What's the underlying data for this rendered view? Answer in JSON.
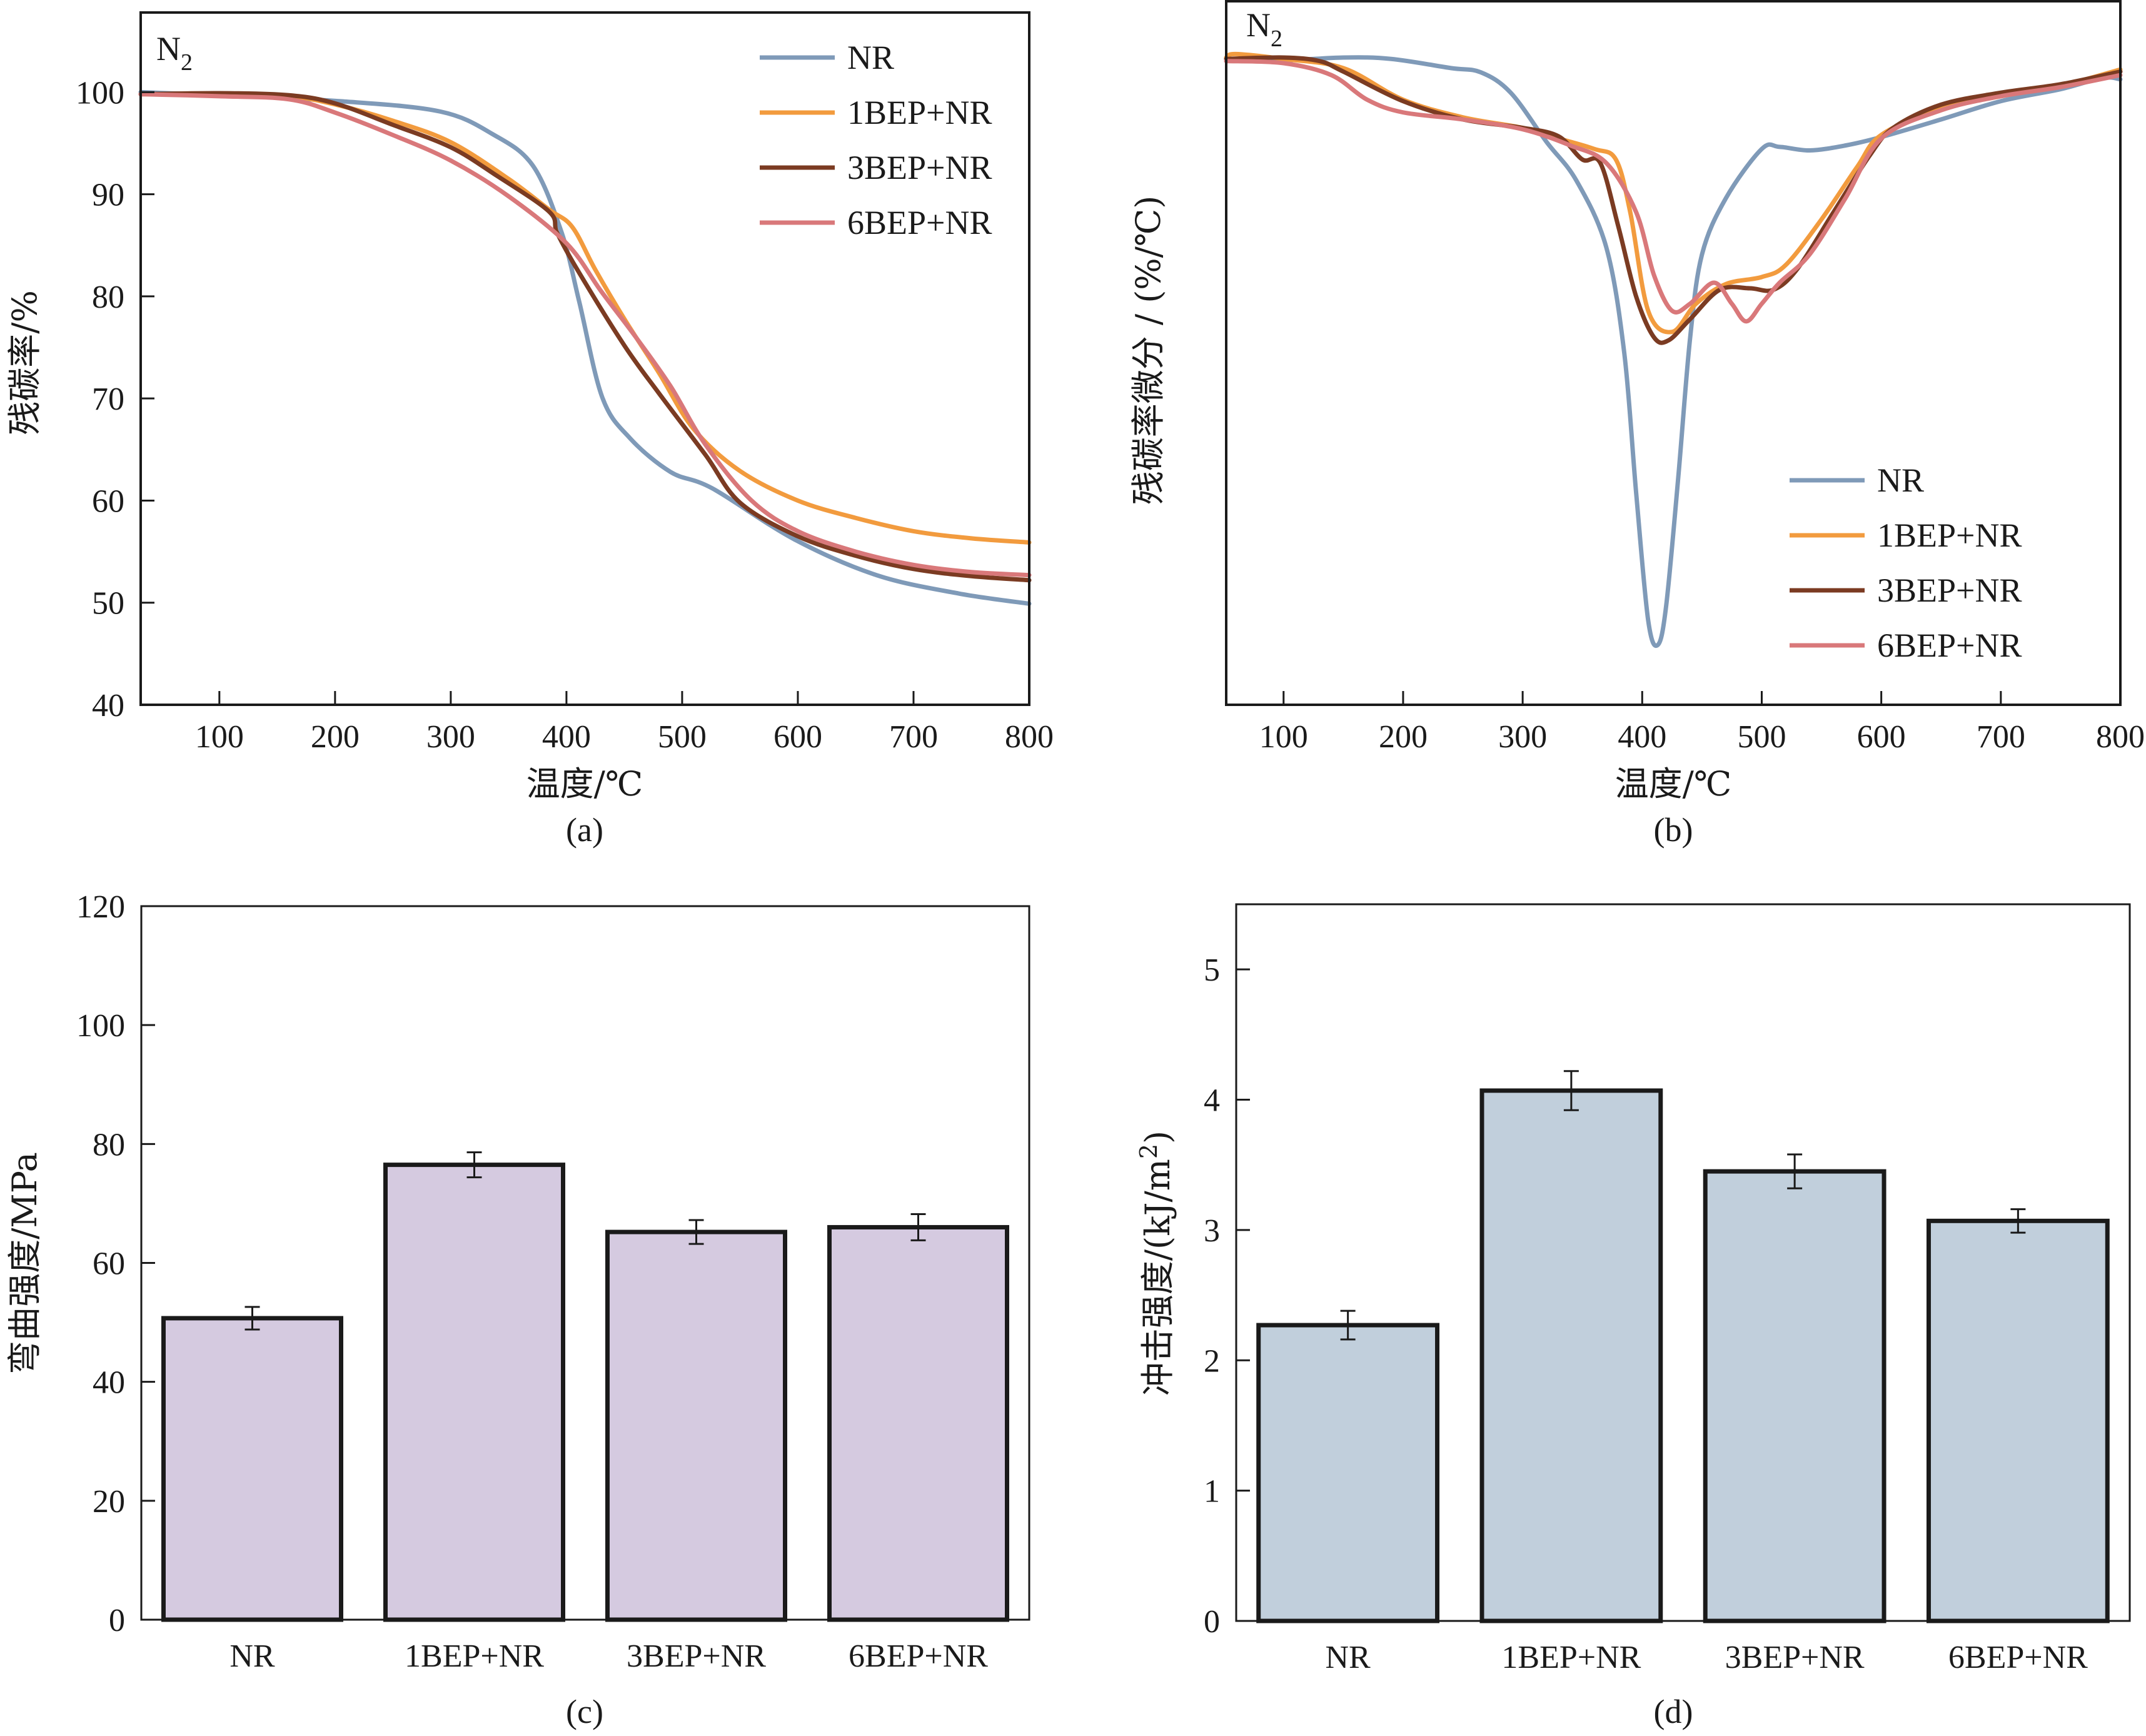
{
  "figure": {
    "panels": [
      "a",
      "b",
      "c",
      "d"
    ]
  },
  "chart_data": [
    {
      "id": "a",
      "type": "line",
      "caption": "(a)",
      "annotation": "N",
      "annotation_sub": "2",
      "xlabel": "温度/℃",
      "ylabel": "残碳率/%",
      "xlim": [
        32,
        800
      ],
      "ylim": [
        40,
        107.8
      ],
      "xticks": [
        100,
        200,
        300,
        400,
        500,
        600,
        700,
        800
      ],
      "yticks": [
        40,
        50,
        60,
        70,
        80,
        90,
        100
      ],
      "grid": false,
      "legend_position": "top-right",
      "series": [
        {
          "name": "NR",
          "color": "#7f9ab8",
          "points": [
            [
              32,
              100
            ],
            [
              100,
              99.7
            ],
            [
              206,
              99.1
            ],
            [
              291,
              98.1
            ],
            [
              336,
              95.9
            ],
            [
              371,
              92.8
            ],
            [
              396,
              86.2
            ],
            [
              411,
              79.5
            ],
            [
              431,
              70.1
            ],
            [
              455,
              66.1
            ],
            [
              490,
              62.8
            ],
            [
              526,
              61.2
            ],
            [
              597,
              56.2
            ],
            [
              668,
              52.7
            ],
            [
              739,
              50.9
            ],
            [
              800,
              49.9
            ]
          ]
        },
        {
          "name": "1BEP+NR",
          "color": "#f29b3e",
          "points": [
            [
              32,
              99.8
            ],
            [
              100,
              99.8
            ],
            [
              160,
              99.6
            ],
            [
              200,
              98.8
            ],
            [
              250,
              97.2
            ],
            [
              300,
              95.1
            ],
            [
              350,
              91.5
            ],
            [
              385,
              88.5
            ],
            [
              405,
              86.8
            ],
            [
              425,
              82.6
            ],
            [
              450,
              77.8
            ],
            [
              480,
              72.5
            ],
            [
              510,
              67.0
            ],
            [
              550,
              62.9
            ],
            [
              600,
              60.0
            ],
            [
              650,
              58.3
            ],
            [
              700,
              57.0
            ],
            [
              750,
              56.3
            ],
            [
              800,
              55.9
            ]
          ]
        },
        {
          "name": "3BEP+NR",
          "color": "#7b3b22",
          "points": [
            [
              32,
              99.8
            ],
            [
              100,
              99.9
            ],
            [
              160,
              99.7
            ],
            [
              200,
              98.9
            ],
            [
              250,
              96.8
            ],
            [
              300,
              94.6
            ],
            [
              340,
              91.8
            ],
            [
              385,
              88.3
            ],
            [
              392,
              86.2
            ],
            [
              410,
              82.5
            ],
            [
              450,
              75.2
            ],
            [
              480,
              70.5
            ],
            [
              520,
              64.5
            ],
            [
              550,
              59.8
            ],
            [
              600,
              56.5
            ],
            [
              650,
              54.6
            ],
            [
              700,
              53.3
            ],
            [
              750,
              52.6
            ],
            [
              800,
              52.2
            ]
          ]
        },
        {
          "name": "6BEP+NR",
          "color": "#d9787a",
          "points": [
            [
              32,
              99.8
            ],
            [
              100,
              99.6
            ],
            [
              160,
              99.3
            ],
            [
              200,
              98.0
            ],
            [
              250,
              95.8
            ],
            [
              300,
              93.3
            ],
            [
              350,
              89.8
            ],
            [
              400,
              85.2
            ],
            [
              430,
              80.5
            ],
            [
              460,
              76.0
            ],
            [
              490,
              71.2
            ],
            [
              520,
              65.5
            ],
            [
              560,
              60.0
            ],
            [
              600,
              57.0
            ],
            [
              650,
              55.0
            ],
            [
              700,
              53.7
            ],
            [
              750,
              53.0
            ],
            [
              800,
              52.7
            ]
          ]
        }
      ]
    },
    {
      "id": "b",
      "type": "line",
      "caption": "(b)",
      "annotation": "N",
      "annotation_sub": "2",
      "xlabel": "温度/℃",
      "ylabel": "残碳率微分 / (%/℃)",
      "y_units_note": "relative (no y tick values shown)",
      "xlim": [
        52,
        800
      ],
      "ylim": [
        0,
        1
      ],
      "xticks": [
        100,
        200,
        300,
        400,
        500,
        600,
        700,
        800
      ],
      "yticks": [],
      "grid": false,
      "legend_position": "bottom-right",
      "series": [
        {
          "name": "NR",
          "color": "#7f9ab8",
          "points": [
            [
              52,
              0.918
            ],
            [
              100,
              0.916
            ],
            [
              150,
              0.92
            ],
            [
              190,
              0.918
            ],
            [
              240,
              0.905
            ],
            [
              265,
              0.899
            ],
            [
              290,
              0.87
            ],
            [
              320,
              0.8
            ],
            [
              345,
              0.745
            ],
            [
              370,
              0.65
            ],
            [
              385,
              0.5
            ],
            [
              395,
              0.3
            ],
            [
              405,
              0.12
            ],
            [
              413,
              0.085
            ],
            [
              420,
              0.14
            ],
            [
              430,
              0.32
            ],
            [
              440,
              0.52
            ],
            [
              450,
              0.64
            ],
            [
              470,
              0.72
            ],
            [
              500,
              0.79
            ],
            [
              515,
              0.793
            ],
            [
              540,
              0.788
            ],
            [
              570,
              0.795
            ],
            [
              600,
              0.807
            ],
            [
              650,
              0.832
            ],
            [
              700,
              0.858
            ],
            [
              750,
              0.875
            ],
            [
              785,
              0.891
            ],
            [
              800,
              0.889
            ]
          ]
        },
        {
          "name": "1BEP+NR",
          "color": "#f29b3e",
          "points": [
            [
              52,
              0.92
            ],
            [
              60,
              0.925
            ],
            [
              100,
              0.918
            ],
            [
              150,
              0.905
            ],
            [
              200,
              0.86
            ],
            [
              250,
              0.835
            ],
            [
              300,
              0.82
            ],
            [
              330,
              0.805
            ],
            [
              360,
              0.79
            ],
            [
              378,
              0.775
            ],
            [
              390,
              0.7
            ],
            [
              405,
              0.56
            ],
            [
              425,
              0.53
            ],
            [
              445,
              0.57
            ],
            [
              470,
              0.598
            ],
            [
              500,
              0.608
            ],
            [
              520,
              0.625
            ],
            [
              550,
              0.69
            ],
            [
              580,
              0.765
            ],
            [
              600,
              0.81
            ],
            [
              650,
              0.848
            ],
            [
              700,
              0.865
            ],
            [
              750,
              0.88
            ],
            [
              800,
              0.903
            ]
          ]
        },
        {
          "name": "3BEP+NR",
          "color": "#7b3b22",
          "points": [
            [
              52,
              0.918
            ],
            [
              100,
              0.92
            ],
            [
              130,
              0.915
            ],
            [
              150,
              0.9
            ],
            [
              200,
              0.858
            ],
            [
              250,
              0.832
            ],
            [
              300,
              0.82
            ],
            [
              330,
              0.808
            ],
            [
              350,
              0.775
            ],
            [
              365,
              0.77
            ],
            [
              380,
              0.68
            ],
            [
              395,
              0.58
            ],
            [
              410,
              0.522
            ],
            [
              422,
              0.518
            ],
            [
              440,
              0.548
            ],
            [
              465,
              0.59
            ],
            [
              490,
              0.592
            ],
            [
              510,
              0.59
            ],
            [
              530,
              0.62
            ],
            [
              560,
              0.7
            ],
            [
              590,
              0.78
            ],
            [
              610,
              0.82
            ],
            [
              650,
              0.853
            ],
            [
              700,
              0.87
            ],
            [
              750,
              0.882
            ],
            [
              800,
              0.9
            ]
          ]
        },
        {
          "name": "6BEP+NR",
          "color": "#d9787a",
          "points": [
            [
              52,
              0.915
            ],
            [
              100,
              0.912
            ],
            [
              140,
              0.895
            ],
            [
              170,
              0.86
            ],
            [
              200,
              0.842
            ],
            [
              250,
              0.832
            ],
            [
              300,
              0.818
            ],
            [
              340,
              0.795
            ],
            [
              370,
              0.77
            ],
            [
              395,
              0.7
            ],
            [
              410,
              0.61
            ],
            [
              425,
              0.56
            ],
            [
              440,
              0.57
            ],
            [
              460,
              0.6
            ],
            [
              475,
              0.57
            ],
            [
              487,
              0.545
            ],
            [
              500,
              0.57
            ],
            [
              515,
              0.6
            ],
            [
              540,
              0.64
            ],
            [
              570,
              0.72
            ],
            [
              600,
              0.805
            ],
            [
              650,
              0.845
            ],
            [
              700,
              0.865
            ],
            [
              750,
              0.878
            ],
            [
              800,
              0.895
            ]
          ]
        }
      ]
    },
    {
      "id": "c",
      "type": "bar",
      "caption": "(c)",
      "xlabel": "",
      "ylabel": "弯曲强度/MPa",
      "ylim": [
        0,
        120
      ],
      "yticks": [
        0,
        20,
        40,
        60,
        80,
        100,
        120
      ],
      "grid": false,
      "bar_color": "#d5cae0",
      "categories": [
        "NR",
        "1BEP+NR",
        "3BEP+NR",
        "6BEP+NR"
      ],
      "values": [
        50.7,
        76.5,
        65.2,
        66.0
      ],
      "errors": [
        1.9,
        2.1,
        2.0,
        2.2
      ]
    },
    {
      "id": "d",
      "type": "bar",
      "caption": "(d)",
      "xlabel": "",
      "ylabel": "冲击强度/(kJ/m",
      "ylabel_sup": "2",
      "ylabel_tail": ")",
      "ylim": [
        0,
        5.5
      ],
      "yticks": [
        0,
        1,
        2,
        3,
        4,
        5
      ],
      "grid": false,
      "bar_color": "#c1cfdc",
      "categories": [
        "NR",
        "1BEP+NR",
        "3BEP+NR",
        "6BEP+NR"
      ],
      "values": [
        2.27,
        4.07,
        3.45,
        3.07
      ],
      "errors": [
        0.11,
        0.15,
        0.13,
        0.09
      ]
    }
  ]
}
